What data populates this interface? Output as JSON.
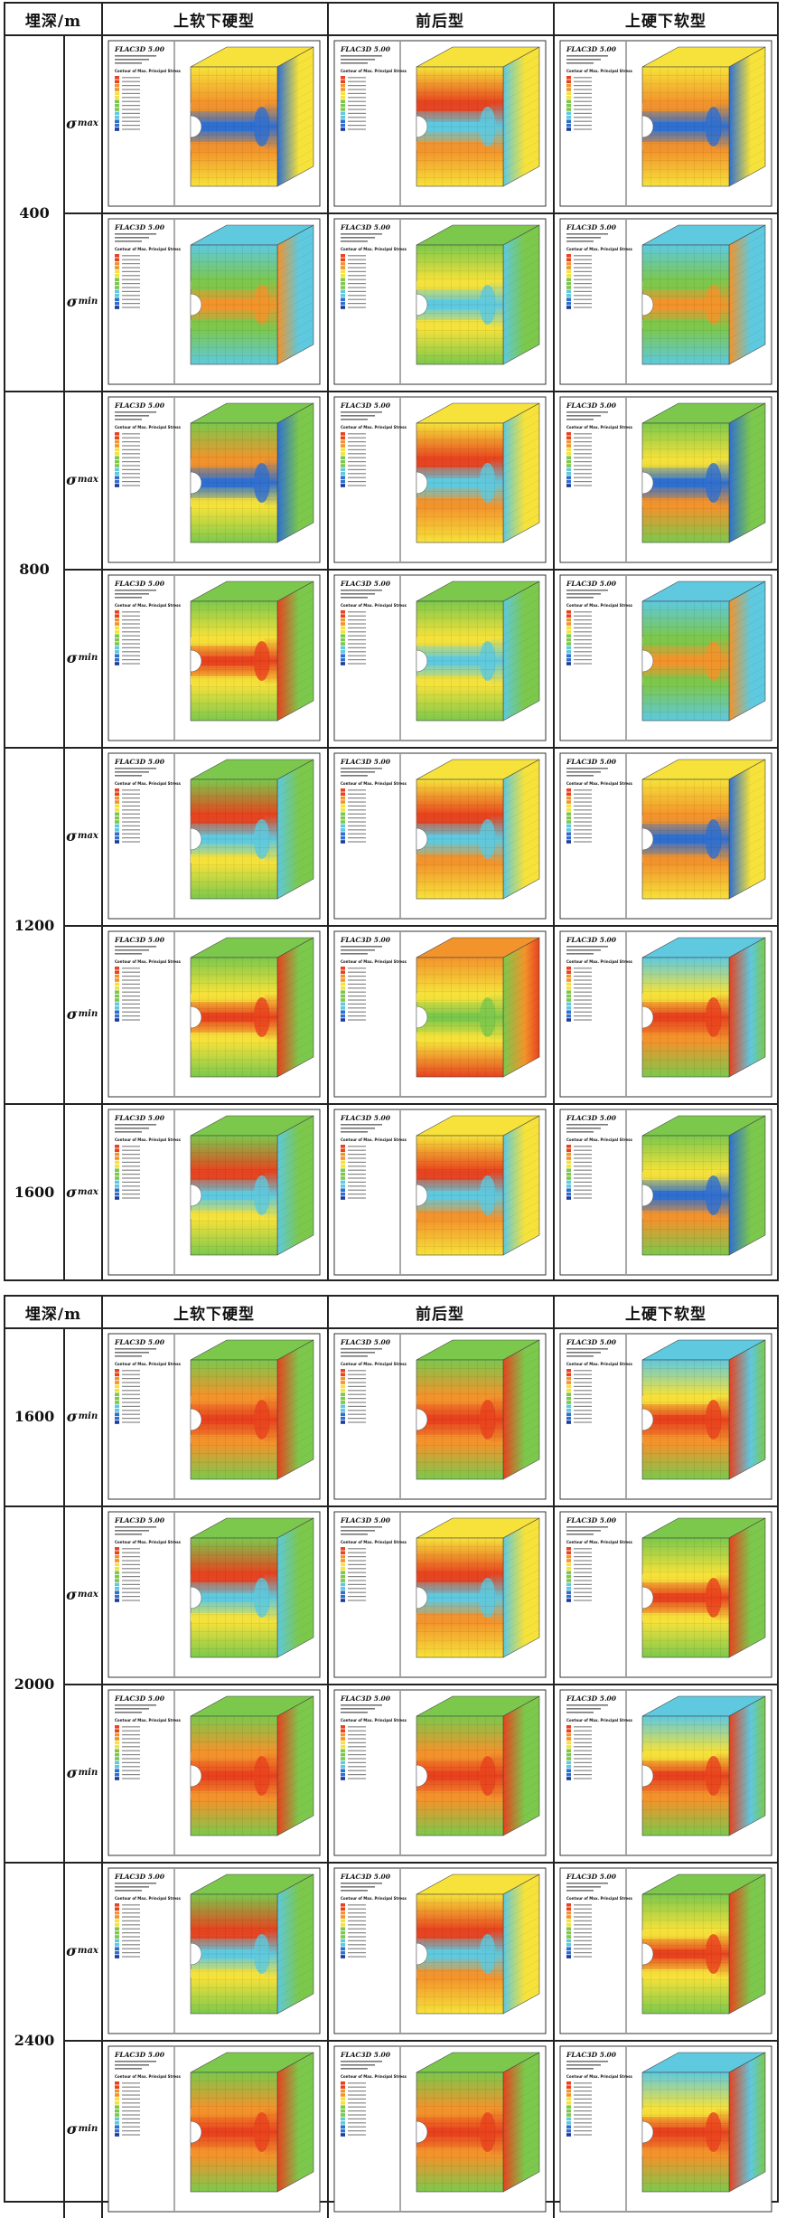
{
  "header": {
    "depth_label": "埋深/m",
    "cols": [
      "上软下硬型",
      "前后型",
      "上硬下软型"
    ]
  },
  "stress_symbol": "σ",
  "stress_subs": {
    "max": "max",
    "min": "min"
  },
  "depths": [
    "400",
    "800",
    "1200",
    "1600",
    "2000",
    "2400"
  ],
  "legend": {
    "program": "FLAC3D 5.00",
    "title": "Contour of Max. Principal Stress"
  },
  "colors": {
    "red": "#e8421e",
    "orange": "#f3932b",
    "yellow": "#f6e23a",
    "green": "#7cc84c",
    "cyan": "#5ec9df",
    "blue": "#2f6fd0",
    "navy": "#1b3c9e"
  },
  "table1": {
    "rows": [
      {
        "depth": "400",
        "stress": "max",
        "patterns": [
          "center-band-blue",
          "split-mixed",
          "center-band-blue"
        ]
      },
      {
        "depth": "400",
        "stress": "min",
        "patterns": [
          "cyan-field",
          "green-field",
          "cyan-field"
        ]
      },
      {
        "depth": "800",
        "stress": "max",
        "patterns": [
          "yellow-orange",
          "split-mixed",
          "green-orange"
        ]
      },
      {
        "depth": "800",
        "stress": "min",
        "patterns": [
          "red-core-green",
          "green-field",
          "cyan-field"
        ]
      },
      {
        "depth": "1200",
        "stress": "max",
        "patterns": [
          "orange-yellow",
          "split-mixed",
          "center-band-blue"
        ]
      },
      {
        "depth": "1200",
        "stress": "min",
        "patterns": [
          "red-core-green",
          "orange-field",
          "red-core-cyan"
        ]
      },
      {
        "depth": "1600",
        "stress": "max",
        "patterns": [
          "orange-yellow",
          "split-mixed",
          "green-orange"
        ]
      }
    ]
  },
  "table2": {
    "rows": [
      {
        "depth": "1600",
        "stress": "min",
        "patterns": [
          "red-field",
          "red-field",
          "red-core-cyan"
        ]
      },
      {
        "depth": "2000",
        "stress": "max",
        "patterns": [
          "orange-yellow",
          "split-mixed",
          "red-core-green"
        ]
      },
      {
        "depth": "2000",
        "stress": "min",
        "patterns": [
          "red-field",
          "red-field",
          "red-core-cyan"
        ]
      },
      {
        "depth": "2400",
        "stress": "max",
        "patterns": [
          "orange-yellow",
          "split-mixed",
          "red-core-green"
        ]
      },
      {
        "depth": "2400",
        "stress": "min",
        "patterns": [
          "red-field",
          "red-field",
          "red-core-cyan"
        ]
      }
    ]
  }
}
